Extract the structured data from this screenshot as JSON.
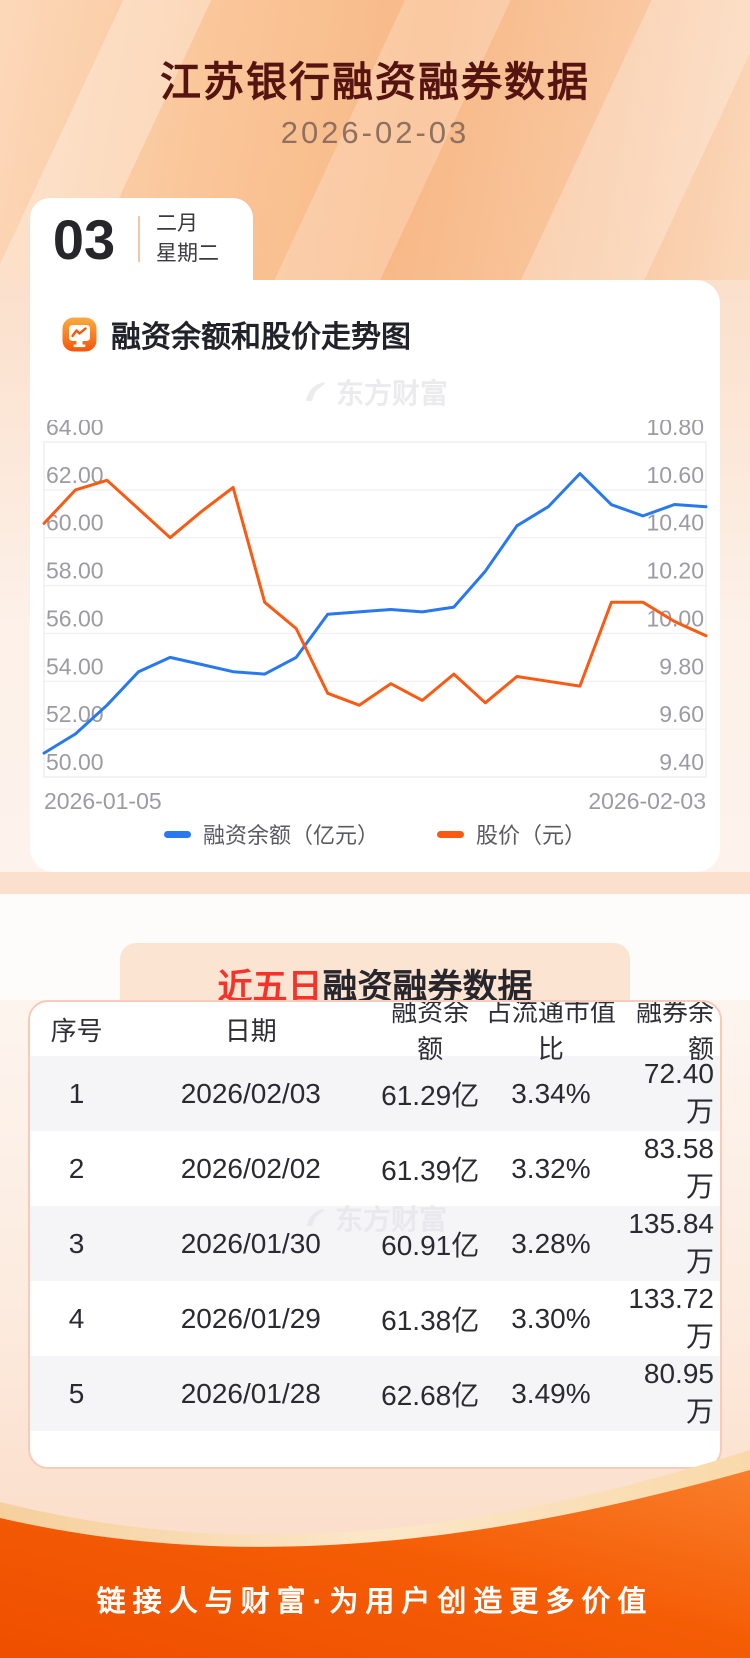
{
  "header": {
    "title": "江苏银行融资融券数据",
    "date": "2026-02-03"
  },
  "date_card": {
    "day": "03",
    "month": "二月",
    "weekday": "星期二"
  },
  "chart_section": {
    "title": "融资余额和股价走势图",
    "watermark": "东方财富",
    "chart_data": {
      "type": "line",
      "x_start_label": "2026-01-05",
      "x_end_label": "2026-02-03",
      "left_axis": {
        "min": 50,
        "max": 64,
        "step": 2
      },
      "right_axis": {
        "min": 9.4,
        "max": 10.8,
        "step": 0.2
      },
      "grid": "horizontal",
      "legend_position": "bottom",
      "series": [
        {
          "name": "融资余额（亿元）",
          "axis": "left",
          "color": "#2878f0",
          "values": [
            51.0,
            51.8,
            53.0,
            54.4,
            55.0,
            54.7,
            54.4,
            54.3,
            55.0,
            56.8,
            56.9,
            57.0,
            56.9,
            57.1,
            58.6,
            60.5,
            61.3,
            62.68,
            61.38,
            60.91,
            61.39,
            61.29
          ]
        },
        {
          "name": "股价（元）",
          "axis": "right",
          "color": "#fa5a12",
          "values": [
            10.46,
            10.6,
            10.64,
            10.52,
            10.4,
            10.51,
            10.61,
            10.13,
            10.02,
            9.75,
            9.7,
            9.79,
            9.72,
            9.83,
            9.71,
            9.82,
            9.8,
            9.78,
            10.13,
            10.13,
            10.05,
            9.99
          ]
        }
      ]
    }
  },
  "table_section": {
    "title_highlight": "近五日",
    "title_rest": "融资融券数据",
    "watermark": "东方财富",
    "columns": [
      "序号",
      "日期",
      "融资余额",
      "占流通市值比",
      "融券余额"
    ],
    "rows": [
      [
        "1",
        "2026/02/03",
        "61.29亿",
        "3.34%",
        "72.40万"
      ],
      [
        "2",
        "2026/02/02",
        "61.39亿",
        "3.32%",
        "83.58万"
      ],
      [
        "3",
        "2026/01/30",
        "60.91亿",
        "3.28%",
        "135.84万"
      ],
      [
        "4",
        "2026/01/29",
        "61.38亿",
        "3.30%",
        "133.72万"
      ],
      [
        "5",
        "2026/01/28",
        "62.68亿",
        "3.49%",
        "80.95万"
      ]
    ]
  },
  "footer": {
    "slogan": "链接人与财富·为用户创造更多价值"
  },
  "colors": {
    "title": "#551410",
    "highlight_red": "#f5332b",
    "line_blue": "#2878f0",
    "line_orange": "#fa5a12",
    "footer_orange": "#f55d05",
    "peach_box": "#fce4d3",
    "axis_label": "#9b9ba3"
  }
}
